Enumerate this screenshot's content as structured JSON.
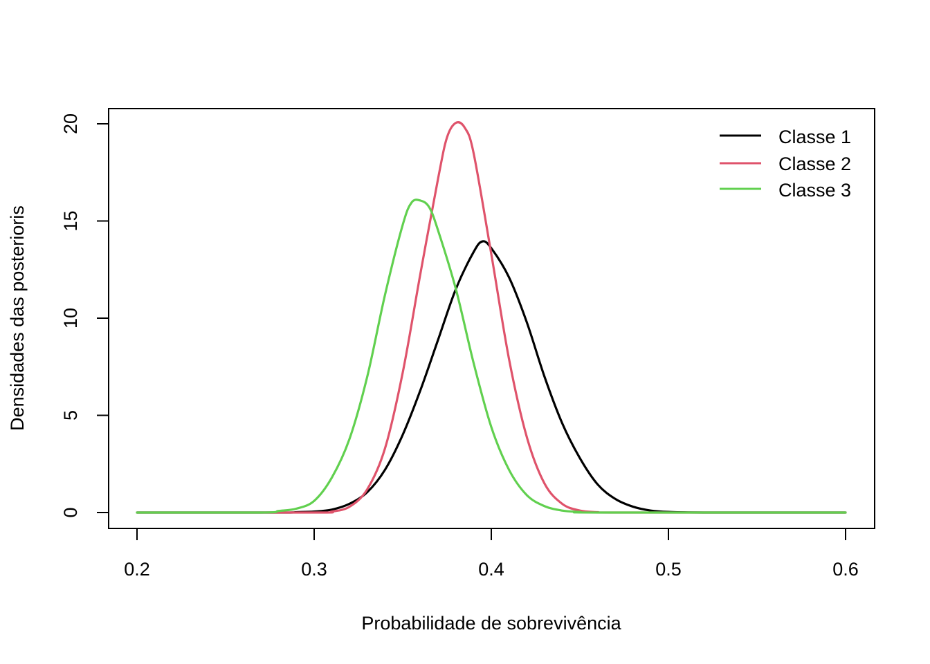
{
  "chart_data": {
    "type": "line",
    "title": "",
    "xlabel": "Probabilidade de sobrevivência",
    "ylabel": "Densidades das posterioris",
    "xlim": [
      0.2,
      0.6
    ],
    "ylim": [
      0,
      20
    ],
    "xticks": [
      "0.2",
      "0.3",
      "0.4",
      "0.5",
      "0.6"
    ],
    "yticks": [
      "0",
      "5",
      "10",
      "15",
      "20"
    ],
    "grid": false,
    "legend_position": "top-right",
    "series": [
      {
        "name": "Classe 1",
        "color": "#000000",
        "points": [
          [
            0.2,
            0
          ],
          [
            0.28,
            0
          ],
          [
            0.29,
            0.02
          ],
          [
            0.3,
            0.05
          ],
          [
            0.31,
            0.15
          ],
          [
            0.32,
            0.45
          ],
          [
            0.33,
            1.05
          ],
          [
            0.34,
            2.2
          ],
          [
            0.35,
            4.0
          ],
          [
            0.36,
            6.3
          ],
          [
            0.37,
            8.9
          ],
          [
            0.38,
            11.5
          ],
          [
            0.39,
            13.4
          ],
          [
            0.395,
            13.95
          ],
          [
            0.4,
            13.6
          ],
          [
            0.41,
            12.1
          ],
          [
            0.42,
            9.8
          ],
          [
            0.43,
            7.0
          ],
          [
            0.44,
            4.6
          ],
          [
            0.45,
            2.8
          ],
          [
            0.46,
            1.45
          ],
          [
            0.47,
            0.7
          ],
          [
            0.48,
            0.3
          ],
          [
            0.49,
            0.1
          ],
          [
            0.5,
            0.03
          ],
          [
            0.52,
            0
          ],
          [
            0.6,
            0
          ]
        ]
      },
      {
        "name": "Classe 2",
        "color": "#DF536B",
        "points": [
          [
            0.2,
            0
          ],
          [
            0.3,
            0
          ],
          [
            0.31,
            0.05
          ],
          [
            0.32,
            0.3
          ],
          [
            0.33,
            1.2
          ],
          [
            0.34,
            3.3
          ],
          [
            0.35,
            7.2
          ],
          [
            0.36,
            12.3
          ],
          [
            0.37,
            17.2
          ],
          [
            0.375,
            19.3
          ],
          [
            0.38,
            20.05
          ],
          [
            0.385,
            19.8
          ],
          [
            0.39,
            18.5
          ],
          [
            0.4,
            13.3
          ],
          [
            0.41,
            7.9
          ],
          [
            0.42,
            3.9
          ],
          [
            0.43,
            1.5
          ],
          [
            0.44,
            0.45
          ],
          [
            0.45,
            0.1
          ],
          [
            0.46,
            0.02
          ],
          [
            0.47,
            0
          ],
          [
            0.6,
            0
          ]
        ]
      },
      {
        "name": "Classe 3",
        "color": "#61D04F",
        "points": [
          [
            0.2,
            0
          ],
          [
            0.27,
            0
          ],
          [
            0.28,
            0.08
          ],
          [
            0.29,
            0.2
          ],
          [
            0.3,
            0.6
          ],
          [
            0.31,
            1.8
          ],
          [
            0.32,
            3.8
          ],
          [
            0.33,
            7.0
          ],
          [
            0.34,
            11.2
          ],
          [
            0.35,
            14.8
          ],
          [
            0.355,
            15.95
          ],
          [
            0.36,
            16.05
          ],
          [
            0.365,
            15.7
          ],
          [
            0.37,
            14.5
          ],
          [
            0.38,
            11.5
          ],
          [
            0.39,
            7.7
          ],
          [
            0.4,
            4.4
          ],
          [
            0.41,
            2.2
          ],
          [
            0.42,
            0.9
          ],
          [
            0.43,
            0.33
          ],
          [
            0.44,
            0.1
          ],
          [
            0.45,
            0.03
          ],
          [
            0.46,
            0
          ],
          [
            0.6,
            0
          ]
        ]
      }
    ]
  }
}
